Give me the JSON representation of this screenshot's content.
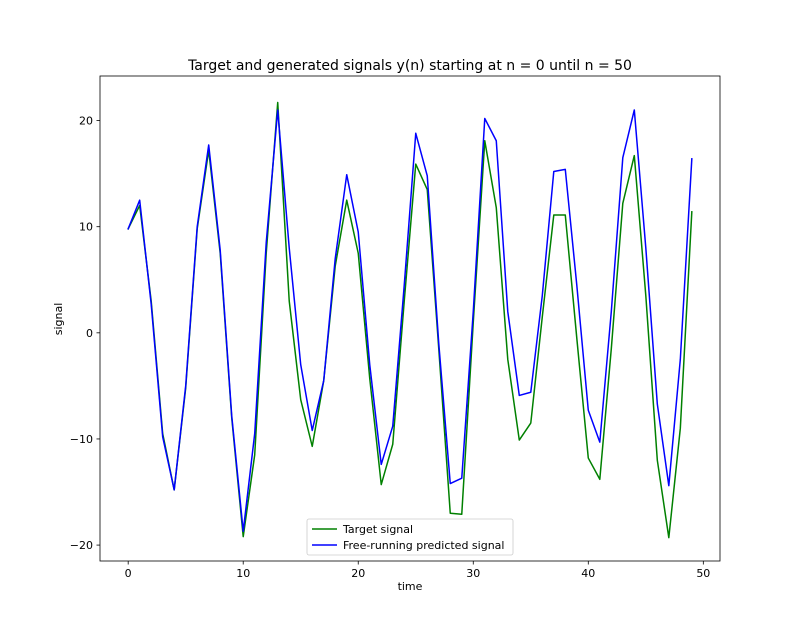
{
  "chart_data": {
    "type": "line",
    "title": "Target and generated signals y(n) starting at n = 0 until n = 50",
    "xlabel": "time",
    "ylabel": "signal",
    "xlim": [
      -2.45,
      51.45
    ],
    "ylim": [
      -21.5,
      24.2
    ],
    "xticks": [
      0,
      10,
      20,
      30,
      40,
      50
    ],
    "yticks": [
      -20,
      -10,
      0,
      10,
      20
    ],
    "ytick_labels": [
      "−20",
      "−10",
      "0",
      "10",
      "20"
    ],
    "grid": false,
    "legend_position": "lower center",
    "x": [
      0,
      1,
      2,
      3,
      4,
      5,
      6,
      7,
      8,
      9,
      10,
      11,
      12,
      13,
      14,
      15,
      16,
      17,
      18,
      19,
      20,
      21,
      22,
      23,
      24,
      25,
      26,
      27,
      28,
      29,
      30,
      31,
      32,
      33,
      34,
      35,
      36,
      37,
      38,
      39,
      40,
      41,
      42,
      43,
      44,
      45,
      46,
      47,
      48,
      49
    ],
    "series": [
      {
        "name": "Target signal",
        "color": "#008000",
        "values": [
          9.8,
          12.0,
          3.0,
          -9.5,
          -14.8,
          -5.2,
          9.8,
          17.2,
          7.5,
          -8.0,
          -19.2,
          -11.5,
          7.5,
          21.7,
          3.0,
          -6.3,
          -10.7,
          -4.5,
          6.3,
          12.5,
          7.5,
          -4.3,
          -14.3,
          -10.5,
          3.0,
          15.9,
          13.5,
          -1.5,
          -17.0,
          -17.1,
          1.0,
          18.1,
          11.8,
          -2.5,
          -10.1,
          -8.5,
          1.5,
          11.1,
          11.1,
          -0.5,
          -11.8,
          -13.8,
          -1.5,
          12.2,
          16.7,
          3.5,
          -12.0,
          -19.3,
          -9.0,
          11.4
        ]
      },
      {
        "name": "Free-running predicted signal",
        "color": "#0000ff",
        "values": [
          9.8,
          12.5,
          2.7,
          -9.8,
          -14.8,
          -5.0,
          10.0,
          17.7,
          7.8,
          -7.8,
          -18.7,
          -9.5,
          8.5,
          21.0,
          8.0,
          -3.0,
          -9.2,
          -4.5,
          7.0,
          14.9,
          9.5,
          -3.0,
          -12.4,
          -8.8,
          4.5,
          18.8,
          14.8,
          -1.0,
          -14.2,
          -13.7,
          2.0,
          20.2,
          18.1,
          2.0,
          -5.9,
          -5.6,
          3.5,
          15.2,
          15.4,
          4.5,
          -7.3,
          -10.3,
          2.0,
          16.5,
          21.0,
          8.0,
          -6.7,
          -14.4,
          -2.5,
          16.4
        ]
      }
    ]
  }
}
